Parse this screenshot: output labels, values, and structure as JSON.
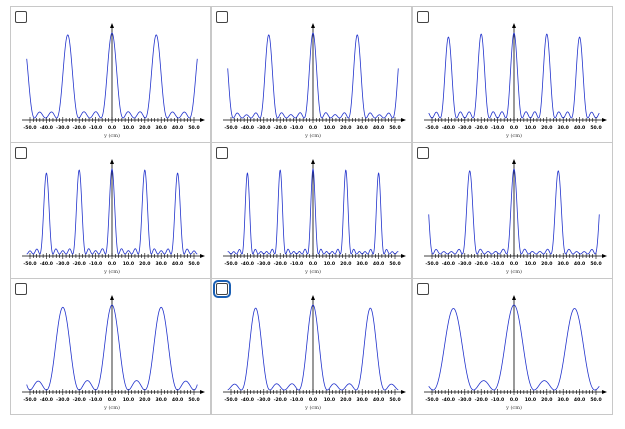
{
  "xlabel": "y (cm)",
  "xticks": [
    "-50.0",
    "-40.0",
    "-30.0",
    "-20.0",
    "-10.0",
    "0.0",
    "10.0",
    "20.0",
    "30.0",
    "40.0",
    "50.0"
  ],
  "colors": {
    "curve": "#2233cc",
    "axis": "#000000",
    "focus": "#1a5fb4",
    "border": "#c8c8c8"
  },
  "chart_data": [
    {
      "type": "line",
      "xlabel": "y (cm)",
      "xlim": [
        -50,
        50
      ],
      "peak_spacing": 27,
      "subsidiary_maxima_between_peaks": 2,
      "checked": false
    },
    {
      "type": "line",
      "xlabel": "y (cm)",
      "xlim": [
        -50,
        50
      ],
      "peak_spacing": 27,
      "subsidiary_maxima_between_peaks": 3,
      "checked": false
    },
    {
      "type": "line",
      "xlabel": "y (cm)",
      "xlim": [
        -50,
        50
      ],
      "peak_spacing": 20,
      "subsidiary_maxima_between_peaks": 2,
      "checked": false
    },
    {
      "type": "line",
      "xlabel": "y (cm)",
      "xlim": [
        -50,
        50
      ],
      "peak_spacing": 20,
      "subsidiary_maxima_between_peaks": 3,
      "checked": false
    },
    {
      "type": "line",
      "xlabel": "y (cm)",
      "xlim": [
        -50,
        50
      ],
      "peak_spacing": 20,
      "subsidiary_maxima_between_peaks": 4,
      "checked": false
    },
    {
      "type": "line",
      "xlabel": "y (cm)",
      "xlim": [
        -50,
        50
      ],
      "peak_spacing": 27,
      "subsidiary_maxima_between_peaks": 4,
      "checked": false
    },
    {
      "type": "line",
      "xlabel": "y (cm)",
      "xlim": [
        -50,
        50
      ],
      "peak_spacing": 30,
      "subsidiary_maxima_between_peaks": 1,
      "checked": false
    },
    {
      "type": "line",
      "xlabel": "y (cm)",
      "xlim": [
        -50,
        50
      ],
      "peak_spacing": 35,
      "subsidiary_maxima_between_peaks": 2,
      "checked": false,
      "focused": true
    },
    {
      "type": "line",
      "xlabel": "y (cm)",
      "xlim": [
        -50,
        50
      ],
      "peak_spacing": 37,
      "subsidiary_maxima_between_peaks": 1,
      "checked": false
    }
  ]
}
